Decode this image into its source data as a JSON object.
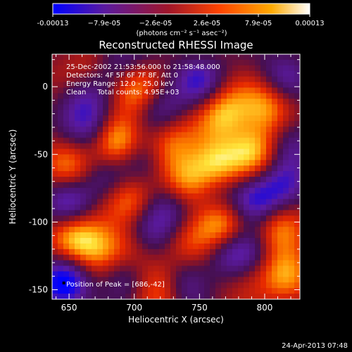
{
  "chart_data": {
    "type": "heatmap",
    "title": "Reconstructed RHESSI Image",
    "xlabel": "Heliocentric X (arcsec)",
    "ylabel": "Heliocentric Y (arcsec)",
    "xlim": [
      637,
      827
    ],
    "ylim": [
      -157,
      24
    ],
    "x_ticks": [
      650,
      700,
      750,
      800
    ],
    "y_ticks": [
      0,
      -50,
      -100,
      -150
    ],
    "colorbar": {
      "label": "(photons cm⁻² s⁻¹ asec⁻²)",
      "range": [
        -0.00013,
        0.00013
      ],
      "ticks": [
        "-0.00013",
        "−7.9e-05",
        "−2.6e-05",
        "2.6e-05",
        "7.9e-05",
        "0.00013"
      ],
      "colors": [
        "#0000ff",
        "#5a1aa0",
        "#a0162a",
        "#ff4400",
        "#ffaa00",
        "#ffffff"
      ]
    },
    "annotations": [
      "25-Dec-2002 21:53:56.000 to 21:58:48.000",
      "Detectors: 4F 5F 6F 7F 8F, Att 0",
      "Energy Range: 12.0 - 25.0 keV",
      "Clean     Total counts: 4.95E+03"
    ],
    "peak_label": "Position of Peak = [686,-42]",
    "peak": {
      "x": 686,
      "y": -42
    },
    "blobs": [
      {
        "x": 686,
        "y": -42,
        "v": 1.0
      },
      {
        "x": 762,
        "y": -57,
        "v": 0.85
      },
      {
        "x": 812,
        "y": -107,
        "v": 0.8
      },
      {
        "x": 767,
        "y": -101,
        "v": 0.9
      },
      {
        "x": 740,
        "y": -70,
        "v": 0.75
      },
      {
        "x": 697,
        "y": -82,
        "v": 0.7
      },
      {
        "x": 720,
        "y": -147,
        "v": 0.7
      },
      {
        "x": 769,
        "y": -19,
        "v": 0.8
      },
      {
        "x": 701,
        "y": -3,
        "v": 0.75
      },
      {
        "x": 792,
        "y": -47,
        "v": 0.75
      },
      {
        "x": 801,
        "y": -15,
        "v": 0.7
      },
      {
        "x": 655,
        "y": -111,
        "v": 0.7
      },
      {
        "x": 675,
        "y": -120,
        "v": 0.7
      },
      {
        "x": 727,
        "y": -40,
        "v": 0.6
      },
      {
        "x": 815,
        "y": -137,
        "v": 0.6
      },
      {
        "x": 650,
        "y": -60,
        "v": 0.55
      },
      {
        "x": 785,
        "y": -140,
        "v": 0.5
      },
      {
        "x": 660,
        "y": 10,
        "v": 0.4
      },
      {
        "x": 744,
        "y": -115,
        "v": 0.6
      },
      {
        "x": 700,
        "y": -120,
        "v": 0.5
      },
      {
        "x": 668,
        "y": -30,
        "v": -0.7
      },
      {
        "x": 650,
        "y": -85,
        "v": -0.7
      },
      {
        "x": 712,
        "y": -110,
        "v": -0.8
      },
      {
        "x": 646,
        "y": -145,
        "v": -1.0
      },
      {
        "x": 775,
        "y": -125,
        "v": -0.7
      },
      {
        "x": 815,
        "y": -75,
        "v": -0.7
      },
      {
        "x": 793,
        "y": -85,
        "v": -0.65
      },
      {
        "x": 750,
        "y": 5,
        "v": -0.7
      },
      {
        "x": 705,
        "y": -55,
        "v": -0.6
      },
      {
        "x": 720,
        "y": -15,
        "v": -0.6
      },
      {
        "x": 690,
        "y": -140,
        "v": -0.6
      },
      {
        "x": 740,
        "y": -145,
        "v": -0.7
      },
      {
        "x": 760,
        "y": -82,
        "v": -0.5
      },
      {
        "x": 815,
        "y": 10,
        "v": -0.55
      },
      {
        "x": 660,
        "y": -5,
        "v": -0.6
      },
      {
        "x": 820,
        "y": -40,
        "v": -0.5
      },
      {
        "x": 730,
        "y": -90,
        "v": -0.5
      },
      {
        "x": 790,
        "y": -120,
        "v": -0.6
      },
      {
        "x": 680,
        "y": -70,
        "v": -0.5
      },
      {
        "x": 690,
        "y": 20,
        "v": -0.5
      }
    ]
  },
  "footer": {
    "timestamp": "24-Apr-2013 07:48"
  }
}
